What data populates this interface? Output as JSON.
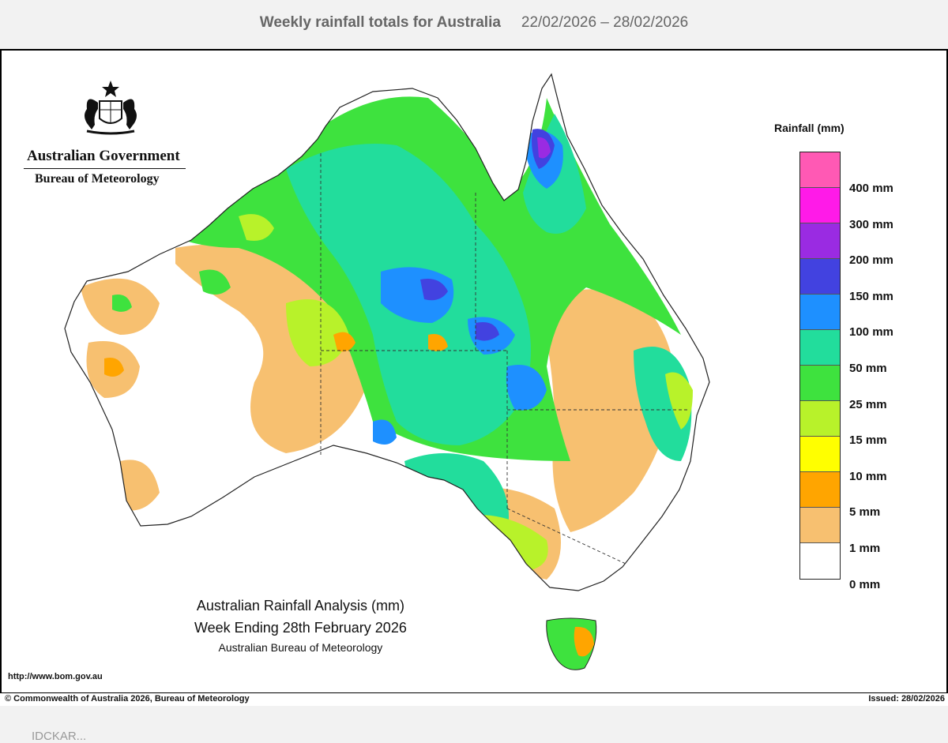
{
  "header": {
    "title": "Weekly rainfall totals for Australia",
    "date_range": "22/02/2026 – 28/02/2026"
  },
  "logo": {
    "line1": "Australian Government",
    "line2": "Bureau of Meteorology",
    "emblem_icon": "coat-of-arms-icon"
  },
  "legend": {
    "title": "Rainfall (mm)",
    "bands": [
      {
        "label": "400 mm",
        "color": "#ff59b4"
      },
      {
        "label": "300 mm",
        "color": "#ff1ae8"
      },
      {
        "label": "200 mm",
        "color": "#9a2be2"
      },
      {
        "label": "150 mm",
        "color": "#4242e0"
      },
      {
        "label": "100 mm",
        "color": "#1e90ff"
      },
      {
        "label": "50 mm",
        "color": "#22dd9c"
      },
      {
        "label": "25 mm",
        "color": "#3ee23e"
      },
      {
        "label": "15 mm",
        "color": "#b8f22a"
      },
      {
        "label": "10 mm",
        "color": "#ffff00"
      },
      {
        "label": "5 mm",
        "color": "#ffa500"
      },
      {
        "label": "1 mm",
        "color": "#f7c070"
      },
      {
        "label": "0 mm",
        "color": "#ffffff"
      }
    ]
  },
  "analysis": {
    "line1": "Australian Rainfall Analysis (mm)",
    "line2": "Week Ending 28th February 2026",
    "line3": "Australian Bureau of Meteorology"
  },
  "url": "http://www.bom.gov.au",
  "footer": {
    "copyright": "© Commonwealth of Australia 2026, Bureau of Meteorology",
    "issued": "Issued: 28/02/2026"
  },
  "cutoff_text": "IDCKAR..."
}
